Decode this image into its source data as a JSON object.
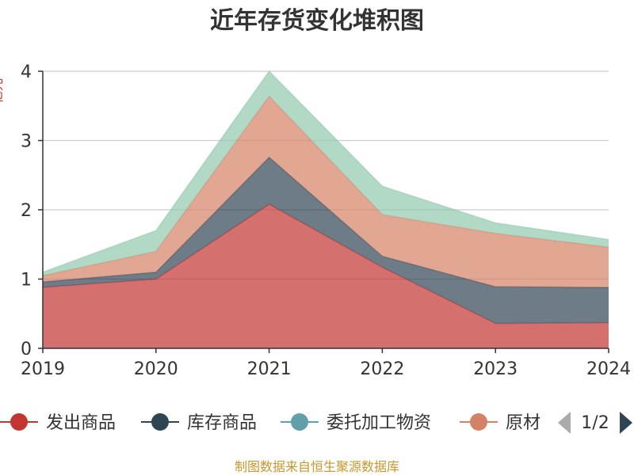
{
  "chart_data": {
    "type": "area",
    "stacked": true,
    "title": "近年存货变化堆积图",
    "ylabel": "亿元",
    "categories": [
      "2019",
      "2020",
      "2021",
      "2022",
      "2023",
      "2024"
    ],
    "ylim": [
      0,
      4
    ],
    "yticks": [
      0,
      1,
      2,
      3,
      4
    ],
    "grid": true,
    "series": [
      {
        "name": "发出商品",
        "color": "#c23531",
        "values": [
          0.88,
          1.0,
          2.08,
          1.17,
          0.36,
          0.37
        ]
      },
      {
        "name": "库存商品",
        "color": "#2f4554",
        "values": [
          0.08,
          0.1,
          0.68,
          0.16,
          0.53,
          0.51
        ]
      },
      {
        "name": "原材料",
        "color": "#d48265",
        "values": [
          0.09,
          0.3,
          0.88,
          0.6,
          0.77,
          0.58
        ]
      },
      {
        "name": "",
        "color": "#91c7ae",
        "values": [
          0.05,
          0.3,
          0.36,
          0.41,
          0.15,
          0.11
        ]
      }
    ],
    "legend": {
      "placement": "bottom",
      "items": [
        {
          "label": "发出商品",
          "color": "#c23531"
        },
        {
          "label": "库存商品",
          "color": "#2f4554"
        },
        {
          "label": "委托加工物资",
          "color": "#61a0a8"
        },
        {
          "label": "原材",
          "color": "#d48265"
        }
      ],
      "page": "1/2"
    }
  },
  "footer": {
    "source": "制图数据来自恒生聚源数据库"
  }
}
